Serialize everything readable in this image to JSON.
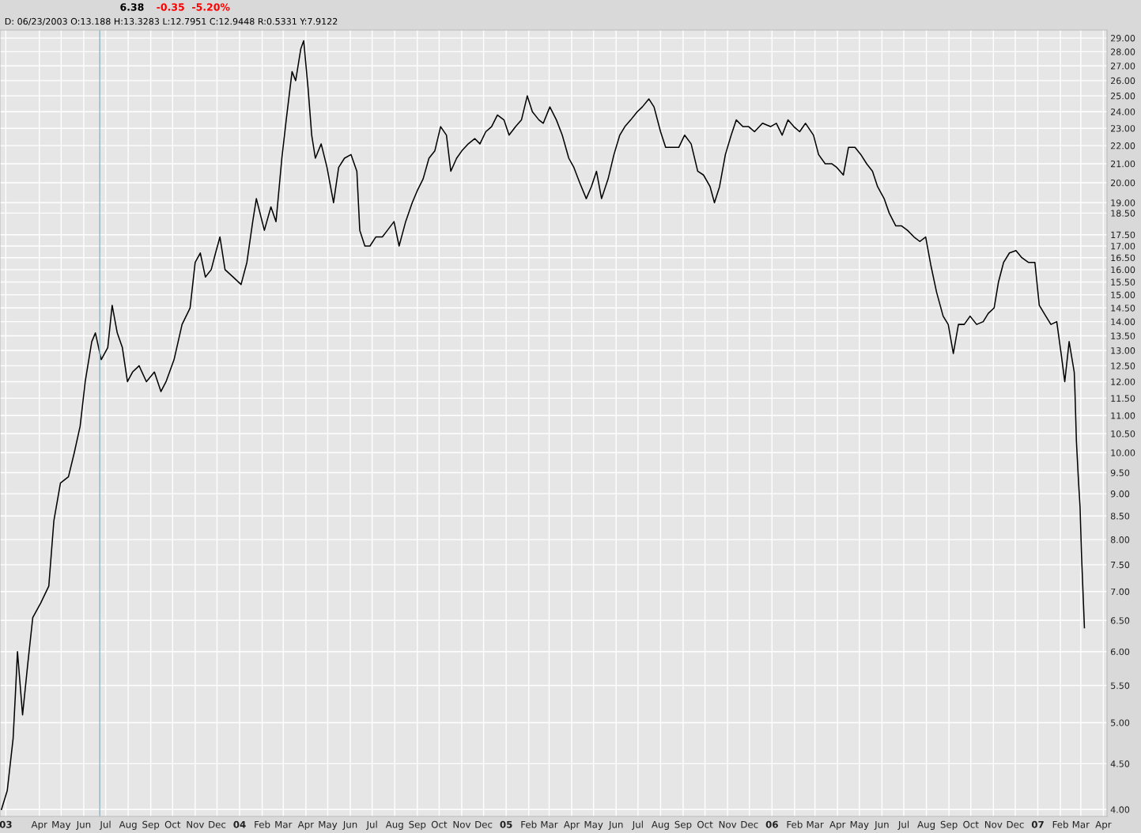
{
  "chart_data": {
    "type": "line",
    "title": "6.38",
    "annotations": [
      "-0.35",
      "-5.20%",
      "D: 06/23/2003 O:13.188 H:13.3283 L:12.7951 C:12.9448 R:0.5331 Y:7.9122"
    ],
    "x": [
      "2003-02-08",
      "2003-02-16",
      "2003-02-24",
      "2003-02-27",
      "2003-03-02",
      "2003-03-09",
      "2003-03-16",
      "2003-03-23",
      "2003-04-03",
      "2003-04-14",
      "2003-04-21",
      "2003-04-30",
      "2003-05-11",
      "2003-05-19",
      "2003-05-27",
      "2003-06-03",
      "2003-06-12",
      "2003-06-17",
      "2003-06-25",
      "2003-07-04",
      "2003-07-10",
      "2003-07-17",
      "2003-07-24",
      "2003-07-31",
      "2003-08-07",
      "2003-08-16",
      "2003-08-26",
      "2003-09-06",
      "2003-09-15",
      "2003-09-22",
      "2003-10-03",
      "2003-10-14",
      "2003-10-25",
      "2003-11-01",
      "2003-11-08",
      "2003-11-15",
      "2003-11-23",
      "2003-11-29",
      "2003-12-05",
      "2003-12-12",
      "2003-12-23",
      "2004-01-03",
      "2004-01-11",
      "2004-01-19",
      "2004-01-24",
      "2004-02-04",
      "2004-02-13",
      "2004-02-20",
      "2004-02-28",
      "2004-03-05",
      "2004-03-13",
      "2004-03-18",
      "2004-03-25",
      "2004-03-29",
      "2004-04-04",
      "2004-04-09",
      "2004-04-14",
      "2004-04-22",
      "2004-04-30",
      "2004-05-09",
      "2004-05-16",
      "2004-05-24",
      "2004-06-02",
      "2004-06-10",
      "2004-06-14",
      "2004-06-21",
      "2004-06-28",
      "2004-07-06",
      "2004-07-15",
      "2004-07-22",
      "2004-07-31",
      "2004-08-07",
      "2004-08-16",
      "2004-08-25",
      "2004-09-01",
      "2004-09-09",
      "2004-09-17",
      "2004-09-25",
      "2004-10-03",
      "2004-10-11",
      "2004-10-17",
      "2004-10-25",
      "2004-11-01",
      "2004-11-10",
      "2004-11-19",
      "2004-11-26",
      "2004-12-04",
      "2004-12-12",
      "2004-12-20",
      "2004-12-29",
      "2005-01-05",
      "2005-01-14",
      "2005-01-22",
      "2005-01-30",
      "2005-02-06",
      "2005-02-15",
      "2005-02-21",
      "2005-03-02",
      "2005-03-11",
      "2005-03-19",
      "2005-03-28",
      "2005-04-04",
      "2005-04-12",
      "2005-04-21",
      "2005-04-28",
      "2005-05-05",
      "2005-05-12",
      "2005-05-21",
      "2005-05-29",
      "2005-06-06",
      "2005-06-13",
      "2005-06-21",
      "2005-06-30",
      "2005-07-07",
      "2005-07-16",
      "2005-07-23",
      "2005-08-01",
      "2005-08-08",
      "2005-08-17",
      "2005-08-26",
      "2005-09-03",
      "2005-09-12",
      "2005-09-21",
      "2005-09-29",
      "2005-10-08",
      "2005-10-14",
      "2005-10-21",
      "2005-10-29",
      "2005-11-06",
      "2005-11-13",
      "2005-11-22",
      "2005-11-30",
      "2005-12-08",
      "2005-12-19",
      "2005-12-30",
      "2006-01-07",
      "2006-01-15",
      "2006-01-23",
      "2006-01-31",
      "2006-02-08",
      "2006-02-16",
      "2006-02-27",
      "2006-03-06",
      "2006-03-15",
      "2006-03-24",
      "2006-03-31",
      "2006-04-09",
      "2006-04-16",
      "2006-04-25",
      "2006-05-03",
      "2006-05-11",
      "2006-05-19",
      "2006-05-26",
      "2006-06-04",
      "2006-06-11",
      "2006-06-20",
      "2006-06-28",
      "2006-07-06",
      "2006-07-15",
      "2006-07-23",
      "2006-07-31",
      "2006-08-07",
      "2006-08-15",
      "2006-08-24",
      "2006-08-31",
      "2006-09-07",
      "2006-09-14",
      "2006-09-22",
      "2006-09-30",
      "2006-10-09",
      "2006-10-18",
      "2006-10-25",
      "2006-11-02",
      "2006-11-08",
      "2006-11-15",
      "2006-11-23",
      "2006-12-02",
      "2006-12-10",
      "2006-12-19",
      "2006-12-28",
      "2007-01-03",
      "2007-01-12",
      "2007-01-19",
      "2007-01-27",
      "2007-02-02",
      "2007-02-07",
      "2007-02-13",
      "2007-02-20",
      "2007-02-21",
      "2007-02-23",
      "2007-02-26",
      "2007-02-28",
      "2007-03-02",
      "2007-03-06"
    ],
    "series": [
      {
        "color": "#000000",
        "values": [
          4.0,
          4.2,
          4.8,
          5.35,
          6.0,
          5.1,
          5.8,
          6.55,
          6.8,
          7.1,
          8.4,
          9.25,
          9.4,
          10.0,
          10.7,
          12.0,
          13.3,
          13.6,
          12.7,
          13.1,
          14.6,
          13.6,
          13.1,
          12.0,
          12.3,
          12.5,
          12.0,
          12.3,
          11.7,
          12.0,
          12.7,
          13.9,
          14.5,
          16.3,
          16.7,
          15.7,
          16.0,
          16.7,
          17.4,
          16.0,
          15.7,
          15.4,
          16.3,
          18.1,
          19.2,
          17.7,
          18.8,
          18.1,
          21.3,
          23.5,
          26.6,
          26.0,
          28.2,
          28.8,
          25.5,
          22.6,
          21.3,
          22.1,
          20.8,
          19.0,
          20.8,
          21.3,
          21.5,
          20.6,
          17.7,
          17.0,
          17.0,
          17.4,
          17.4,
          17.7,
          18.1,
          17.0,
          18.1,
          19.0,
          19.6,
          20.2,
          21.3,
          21.7,
          23.1,
          22.6,
          20.6,
          21.3,
          21.7,
          22.1,
          22.4,
          22.1,
          22.8,
          23.1,
          23.8,
          23.5,
          22.6,
          23.1,
          23.5,
          25.0,
          24.0,
          23.5,
          23.3,
          24.3,
          23.5,
          22.6,
          21.3,
          20.8,
          20.0,
          19.2,
          19.8,
          20.6,
          19.2,
          20.2,
          21.5,
          22.6,
          23.1,
          23.5,
          24.0,
          24.3,
          24.8,
          24.3,
          22.8,
          21.9,
          21.9,
          21.9,
          22.6,
          22.1,
          20.6,
          20.4,
          19.8,
          19.0,
          19.8,
          21.5,
          22.6,
          23.5,
          23.1,
          23.1,
          22.8,
          23.3,
          23.1,
          23.3,
          22.6,
          23.5,
          23.1,
          22.8,
          23.3,
          22.6,
          21.5,
          21.0,
          21.0,
          20.8,
          20.4,
          21.9,
          21.9,
          21.5,
          21.0,
          20.6,
          19.8,
          19.2,
          18.5,
          17.9,
          17.9,
          17.7,
          17.4,
          17.2,
          17.4,
          16.2,
          15.1,
          14.2,
          13.9,
          12.9,
          13.9,
          13.9,
          14.2,
          13.9,
          14.0,
          14.3,
          14.5,
          15.5,
          16.3,
          16.7,
          16.8,
          16.5,
          16.3,
          16.3,
          14.6,
          14.2,
          13.9,
          14.0,
          12.9,
          12.0,
          13.3,
          12.3,
          11.7,
          10.3,
          9.25,
          8.7,
          7.7,
          6.38
        ]
      }
    ],
    "log": "y",
    "ylim": [
      3.93,
      29.6
    ],
    "yticks": [
      {
        "value": 4,
        "label": "4.00"
      },
      {
        "value": 4.5,
        "label": "4.50"
      },
      {
        "value": 5,
        "label": "5.00"
      },
      {
        "value": 5.5,
        "label": "5.50"
      },
      {
        "value": 6,
        "label": "6.00"
      },
      {
        "value": 6.5,
        "label": "6.50"
      },
      {
        "value": 7,
        "label": "7.00"
      },
      {
        "value": 7.5,
        "label": "7.50"
      },
      {
        "value": 8,
        "label": "8.00"
      },
      {
        "value": 8.5,
        "label": "8.50"
      },
      {
        "value": 9,
        "label": "9.00"
      },
      {
        "value": 9.5,
        "label": "9.50"
      },
      {
        "value": 10,
        "label": "10.00"
      },
      {
        "value": 10.5,
        "label": "10.50"
      },
      {
        "value": 11,
        "label": "11.00"
      },
      {
        "value": 11.5,
        "label": "11.50"
      },
      {
        "value": 12,
        "label": "12.00"
      },
      {
        "value": 12.5,
        "label": "12.50"
      },
      {
        "value": 13,
        "label": "13.00"
      },
      {
        "value": 13.5,
        "label": "13.50"
      },
      {
        "value": 14,
        "label": "14.00"
      },
      {
        "value": 14.5,
        "label": "14.50"
      },
      {
        "value": 15,
        "label": "15.00"
      },
      {
        "value": 15.5,
        "label": "15.50"
      },
      {
        "value": 16,
        "label": "16.00"
      },
      {
        "value": 16.5,
        "label": "16.50"
      },
      {
        "value": 17,
        "label": "17.00"
      },
      {
        "value": 17.5,
        "label": "17.50"
      },
      {
        "value": 18.5,
        "label": "18.50"
      },
      {
        "value": 19,
        "label": "19.00"
      },
      {
        "value": 20,
        "label": "20.00"
      },
      {
        "value": 21,
        "label": "21.00"
      },
      {
        "value": 22,
        "label": "22.00"
      },
      {
        "value": 23,
        "label": "23.00"
      },
      {
        "value": 24,
        "label": "24.00"
      },
      {
        "value": 25,
        "label": "25.00"
      },
      {
        "value": 26,
        "label": "26.00"
      },
      {
        "value": 27,
        "label": "27.00"
      },
      {
        "value": 28,
        "label": "28.00"
      },
      {
        "value": 29,
        "label": "29.00"
      }
    ],
    "xlim": [
      "2003-02-06",
      "2007-04-06"
    ],
    "xticks": [
      {
        "value": "2003-02-14",
        "label": "03"
      },
      {
        "value": "2003-04-01",
        "label": "Apr"
      },
      {
        "value": "2003-05-01",
        "label": "May"
      },
      {
        "value": "2003-06-01",
        "label": "Jun"
      },
      {
        "value": "2003-07-01",
        "label": "Jul"
      },
      {
        "value": "2003-08-01",
        "label": "Aug"
      },
      {
        "value": "2003-09-01",
        "label": "Sep"
      },
      {
        "value": "2003-10-01",
        "label": "Oct"
      },
      {
        "value": "2003-11-01",
        "label": "Nov"
      },
      {
        "value": "2003-12-01",
        "label": "Dec"
      },
      {
        "value": "2004-01-01",
        "label": "04"
      },
      {
        "value": "2004-02-01",
        "label": "Feb"
      },
      {
        "value": "2004-03-01",
        "label": "Mar"
      },
      {
        "value": "2004-04-01",
        "label": "Apr"
      },
      {
        "value": "2004-05-01",
        "label": "May"
      },
      {
        "value": "2004-06-01",
        "label": "Jun"
      },
      {
        "value": "2004-07-01",
        "label": "Jul"
      },
      {
        "value": "2004-08-01",
        "label": "Aug"
      },
      {
        "value": "2004-09-01",
        "label": "Sep"
      },
      {
        "value": "2004-10-01",
        "label": "Oct"
      },
      {
        "value": "2004-11-01",
        "label": "Nov"
      },
      {
        "value": "2004-12-01",
        "label": "Dec"
      },
      {
        "value": "2005-01-01",
        "label": "05"
      },
      {
        "value": "2005-02-01",
        "label": "Feb"
      },
      {
        "value": "2005-03-01",
        "label": "Mar"
      },
      {
        "value": "2005-04-01",
        "label": "Apr"
      },
      {
        "value": "2005-05-01",
        "label": "May"
      },
      {
        "value": "2005-06-01",
        "label": "Jun"
      },
      {
        "value": "2005-07-01",
        "label": "Jul"
      },
      {
        "value": "2005-08-01",
        "label": "Aug"
      },
      {
        "value": "2005-09-01",
        "label": "Sep"
      },
      {
        "value": "2005-10-01",
        "label": "Oct"
      },
      {
        "value": "2005-11-01",
        "label": "Nov"
      },
      {
        "value": "2005-12-01",
        "label": "Dec"
      },
      {
        "value": "2006-01-01",
        "label": "06"
      },
      {
        "value": "2006-02-01",
        "label": "Feb"
      },
      {
        "value": "2006-03-01",
        "label": "Mar"
      },
      {
        "value": "2006-04-01",
        "label": "Apr"
      },
      {
        "value": "2006-05-01",
        "label": "May"
      },
      {
        "value": "2006-06-01",
        "label": "Jun"
      },
      {
        "value": "2006-07-01",
        "label": "Jul"
      },
      {
        "value": "2006-08-01",
        "label": "Aug"
      },
      {
        "value": "2006-09-01",
        "label": "Sep"
      },
      {
        "value": "2006-10-01",
        "label": "Oct"
      },
      {
        "value": "2006-11-01",
        "label": "Nov"
      },
      {
        "value": "2006-12-01",
        "label": "Dec"
      },
      {
        "value": "2007-01-01",
        "label": "07"
      },
      {
        "value": "2007-02-01",
        "label": "Feb"
      },
      {
        "value": "2007-03-01",
        "label": "Mar"
      },
      {
        "value": "2007-04-01",
        "label": "Apr"
      }
    ],
    "ref_lines": [
      {
        "axis": "x",
        "value": "2003-06-23",
        "color": "#8fb3c0"
      }
    ],
    "grid": true,
    "marker": "none",
    "line_style": "solid"
  }
}
